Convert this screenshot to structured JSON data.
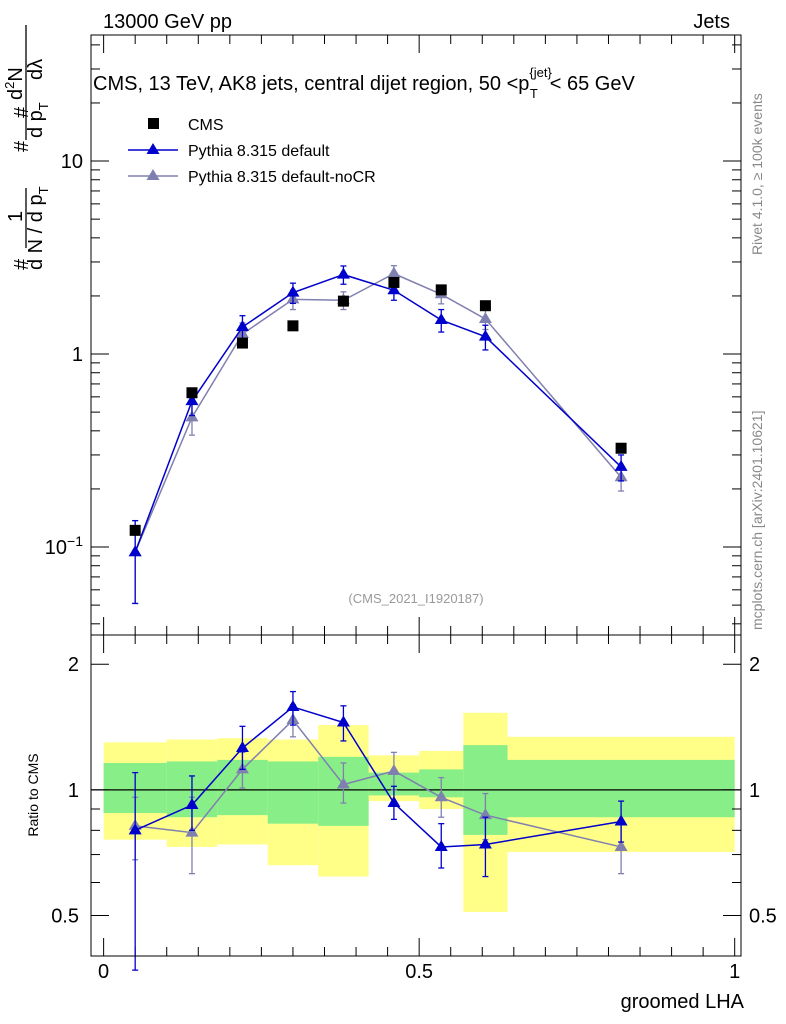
{
  "header": {
    "left": "13000 GeV pp",
    "right": "Jets"
  },
  "side_labels": {
    "events": "Rivet 4.1.0, ≥ 100k events",
    "source": "mcplots.cern.ch [arXiv:2401.10621]"
  },
  "colors": {
    "cms": "#000000",
    "default": "#0000cc",
    "nocr": "#8080b0",
    "band_inner": "#88ee88",
    "band_outer": "#ffff88"
  },
  "chart_data": [
    {
      "type": "scatter",
      "title": "CMS, 13 TeV, AK8 jets, central dijet region, 50 <p_T^{jet}< 65 GeV",
      "title_parts": {
        "main": "CMS, 13 TeV, AK8 jets, central dijet region, 50 <p",
        "sup": "{jet}",
        "sub": "T",
        "end": "< 65 GeV"
      },
      "ylabel": "1/dN/dp_T  d²N/dp_T dλ",
      "ylabel_parts": {
        "a": "1",
        "b": "d N / d p",
        "c": "d",
        "d": "N",
        "e": "d p",
        "f": "dλ",
        "sub": "T",
        "hash": "#",
        "two": "2"
      },
      "yscale": "log",
      "ylim": [
        0.035,
        45
      ],
      "xlim": [
        -0.02,
        1.01
      ],
      "y_ticks": [
        {
          "value": 0.1,
          "base": "10",
          "exp": "−1"
        },
        {
          "value": 1,
          "label": "1"
        },
        {
          "value": 10,
          "label": "10"
        }
      ],
      "watermark": "(CMS_2021_I1920187)",
      "legend": {
        "position": "top-left",
        "entries": [
          "CMS",
          "Pythia 8.315 default",
          "Pythia 8.315 default-noCR"
        ]
      },
      "series": [
        {
          "name": "CMS",
          "marker": "square",
          "x": [
            0.05,
            0.14,
            0.22,
            0.3,
            0.38,
            0.46,
            0.535,
            0.605,
            0.82
          ],
          "y": [
            0.122,
            0.63,
            1.14,
            1.4,
            1.88,
            2.35,
            2.15,
            1.78,
            0.325
          ]
        },
        {
          "name": "Pythia 8.315 default",
          "marker": "triangle",
          "x": [
            0.05,
            0.14,
            0.22,
            0.3,
            0.38,
            0.46,
            0.535,
            0.605,
            0.82
          ],
          "y": [
            0.094,
            0.57,
            1.38,
            2.08,
            2.58,
            2.14,
            1.5,
            1.23,
            0.26
          ],
          "err": [
            0.043,
            0.09,
            0.2,
            0.25,
            0.28,
            0.24,
            0.2,
            0.18,
            0.04
          ]
        },
        {
          "name": "Pythia 8.315 default-noCR",
          "marker": "triangle",
          "x": [
            0.05,
            0.14,
            0.22,
            0.3,
            0.38,
            0.46,
            0.535,
            0.605,
            0.82
          ],
          "y": [
            0.094,
            0.47,
            1.27,
            1.92,
            1.9,
            2.61,
            2.04,
            1.52,
            0.23
          ],
          "err": [
            0.043,
            0.09,
            0.18,
            0.22,
            0.2,
            0.26,
            0.22,
            0.18,
            0.035
          ]
        }
      ]
    },
    {
      "type": "scatter",
      "xlabel": "groomed LHA",
      "ylabel": "Ratio to CMS",
      "yscale": "log",
      "ylim": [
        0.4,
        2.35
      ],
      "xlim": [
        -0.02,
        1.01
      ],
      "x_ticks": [
        {
          "value": 0,
          "label": "0"
        },
        {
          "value": 0.5,
          "label": "0.5"
        },
        {
          "value": 1,
          "label": "1"
        }
      ],
      "y_ticks": [
        {
          "value": 0.5,
          "label": "0.5"
        },
        {
          "value": 1,
          "label": "1"
        },
        {
          "value": 2,
          "label": "2"
        }
      ],
      "reference_line": 1,
      "bands": {
        "edges": [
          0,
          0.1,
          0.18,
          0.26,
          0.34,
          0.42,
          0.5,
          0.57,
          0.64,
          1.0
        ],
        "outer_hi": [
          1.3,
          1.32,
          1.33,
          1.32,
          1.43,
          1.21,
          1.24,
          1.53,
          1.34
        ],
        "outer_lo": [
          0.76,
          0.73,
          0.74,
          0.66,
          0.62,
          0.94,
          0.9,
          0.51,
          0.71
        ],
        "inner_hi": [
          1.16,
          1.17,
          1.18,
          1.17,
          1.2,
          1.1,
          1.12,
          1.28,
          1.18
        ],
        "inner_lo": [
          0.88,
          0.86,
          0.87,
          0.83,
          0.82,
          0.97,
          0.96,
          0.78,
          0.86
        ]
      },
      "series": [
        {
          "name": "Pythia 8.315 default",
          "x": [
            0.05,
            0.14,
            0.22,
            0.3,
            0.38,
            0.46,
            0.535,
            0.605,
            0.82
          ],
          "y": [
            0.8,
            0.92,
            1.26,
            1.58,
            1.45,
            0.93,
            0.73,
            0.74,
            0.84
          ],
          "lo": [
            0.37,
            0.8,
            1.12,
            1.43,
            1.31,
            0.85,
            0.65,
            0.62,
            0.75
          ],
          "hi": [
            1.1,
            1.08,
            1.42,
            1.72,
            1.59,
            1.02,
            0.83,
            0.86,
            0.94
          ]
        },
        {
          "name": "Pythia 8.315 default-noCR",
          "x": [
            0.05,
            0.14,
            0.22,
            0.3,
            0.38,
            0.46,
            0.535,
            0.605,
            0.82
          ],
          "y": [
            0.82,
            0.79,
            1.12,
            1.47,
            1.03,
            1.11,
            0.96,
            0.87,
            0.73
          ],
          "lo": [
            0.68,
            0.63,
            1.01,
            1.34,
            0.93,
            1.0,
            0.86,
            0.76,
            0.63
          ],
          "hi": [
            0.96,
            0.96,
            1.23,
            1.6,
            1.16,
            1.23,
            1.07,
            0.98,
            0.83
          ]
        }
      ]
    }
  ]
}
